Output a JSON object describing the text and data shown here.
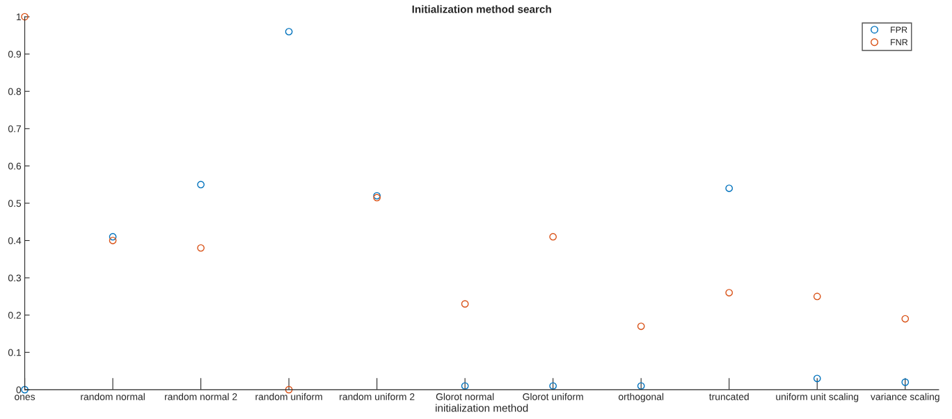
{
  "chart_data": {
    "type": "scatter",
    "title": "Initialization method search",
    "xlabel": "initialization method",
    "categories": [
      "ones",
      "random normal",
      "random normal 2",
      "random uniform",
      "random uniform 2",
      "Glorot normal",
      "Glorot uniform",
      "orthogonal",
      "truncated",
      "uniform unit scaling",
      "variance scaling"
    ],
    "series": [
      {
        "name": "FPR",
        "color": "#0072bd",
        "values": [
          0.0,
          0.41,
          0.55,
          0.96,
          0.52,
          0.01,
          0.01,
          0.01,
          0.54,
          0.03,
          0.02
        ]
      },
      {
        "name": "FNR",
        "color": "#d95319",
        "values": [
          1.0,
          0.4,
          0.38,
          0.0,
          0.515,
          0.23,
          0.41,
          0.17,
          0.26,
          0.25,
          0.19
        ]
      }
    ],
    "ylim": [
      0,
      1
    ],
    "yticks": [
      0,
      0.1,
      0.2,
      0.3,
      0.4,
      0.5,
      0.6,
      0.7,
      0.8,
      0.9,
      1
    ],
    "marker": "circle",
    "legend": "top right",
    "grid": false
  }
}
